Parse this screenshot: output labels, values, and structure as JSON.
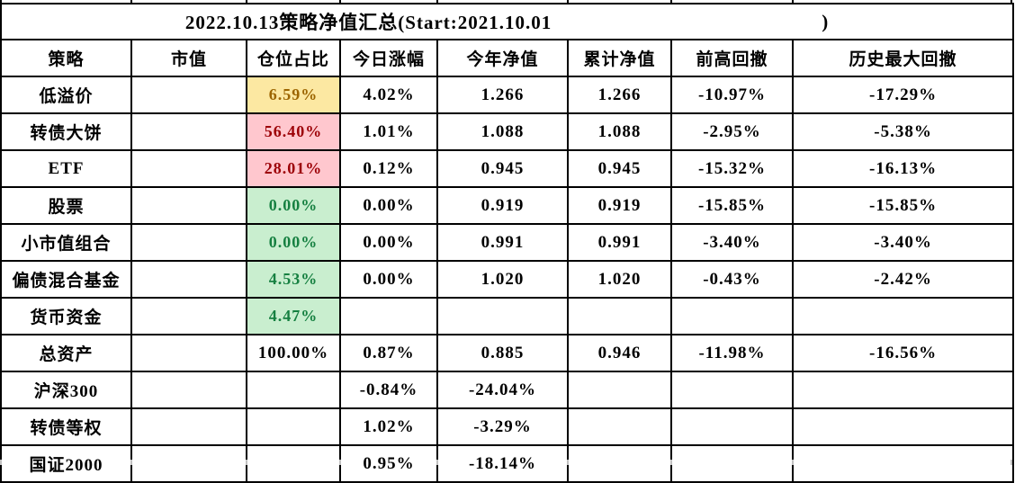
{
  "title": {
    "text": "2022.10.13策略净值汇总(Start:2021.10.01",
    "close_paren": ")"
  },
  "columns": [
    "策略",
    "市值",
    "仓位占比",
    "今日涨幅",
    "今年净值",
    "累计净值",
    "前高回撤",
    "历史最大回撤"
  ],
  "rows": [
    {
      "strategy": "低溢价",
      "market_value": "",
      "position": "6.59%",
      "position_style": "neutral",
      "today_change": "4.02%",
      "ytd_nav": "1.266",
      "cumulative_nav": "1.266",
      "drawdown_from_high": "-10.97%",
      "max_drawdown": "-17.29%"
    },
    {
      "strategy": "转债大饼",
      "market_value": "",
      "position": "56.40%",
      "position_style": "bad",
      "today_change": "1.01%",
      "ytd_nav": "1.088",
      "cumulative_nav": "1.088",
      "drawdown_from_high": "-2.95%",
      "max_drawdown": "-5.38%"
    },
    {
      "strategy": "ETF",
      "market_value": "",
      "position": "28.01%",
      "position_style": "bad",
      "today_change": "0.12%",
      "ytd_nav": "0.945",
      "cumulative_nav": "0.945",
      "drawdown_from_high": "-15.32%",
      "max_drawdown": "-16.13%"
    },
    {
      "strategy": "股票",
      "market_value": "",
      "position": "0.00%",
      "position_style": "good",
      "today_change": "0.00%",
      "ytd_nav": "0.919",
      "cumulative_nav": "0.919",
      "drawdown_from_high": "-15.85%",
      "max_drawdown": "-15.85%"
    },
    {
      "strategy": "小市值组合",
      "market_value": "",
      "position": "0.00%",
      "position_style": "good",
      "today_change": "0.00%",
      "ytd_nav": "0.991",
      "cumulative_nav": "0.991",
      "drawdown_from_high": "-3.40%",
      "max_drawdown": "-3.40%"
    },
    {
      "strategy": "偏债混合基金",
      "market_value": "",
      "position": "4.53%",
      "position_style": "good",
      "today_change": "0.00%",
      "ytd_nav": "1.020",
      "cumulative_nav": "1.020",
      "drawdown_from_high": "-0.43%",
      "max_drawdown": "-2.42%"
    },
    {
      "strategy": "货币资金",
      "market_value": "",
      "position": "4.47%",
      "position_style": "good",
      "today_change": "",
      "ytd_nav": "",
      "cumulative_nav": "",
      "drawdown_from_high": "",
      "max_drawdown": ""
    },
    {
      "strategy": "总资产",
      "market_value": "",
      "position": "100.00%",
      "position_style": "none",
      "today_change": "0.87%",
      "ytd_nav": "0.885",
      "cumulative_nav": "0.946",
      "drawdown_from_high": "-11.98%",
      "max_drawdown": "-16.56%"
    },
    {
      "strategy": "沪深300",
      "market_value": "",
      "position": "",
      "position_style": "none",
      "today_change": "-0.84%",
      "ytd_nav": "-24.04%",
      "cumulative_nav": "",
      "drawdown_from_high": "",
      "max_drawdown": ""
    },
    {
      "strategy": "转债等权",
      "market_value": "",
      "position": "",
      "position_style": "none",
      "today_change": "1.02%",
      "ytd_nav": "-3.29%",
      "cumulative_nav": "",
      "drawdown_from_high": "",
      "max_drawdown": ""
    },
    {
      "strategy": "国证2000",
      "market_value": "",
      "position": "",
      "position_style": "none",
      "today_change": "0.95%",
      "ytd_nav": "-18.14%",
      "cumulative_nav": "",
      "drawdown_from_high": "",
      "max_drawdown": ""
    }
  ],
  "colors": {
    "neutral_bg": "#FCE8A2",
    "neutral_text": "#9C6500",
    "bad_bg": "#FFC7CE",
    "bad_text": "#9C0006",
    "good_bg": "#C9EECF",
    "good_text": "#168041",
    "grid": "#000000"
  }
}
